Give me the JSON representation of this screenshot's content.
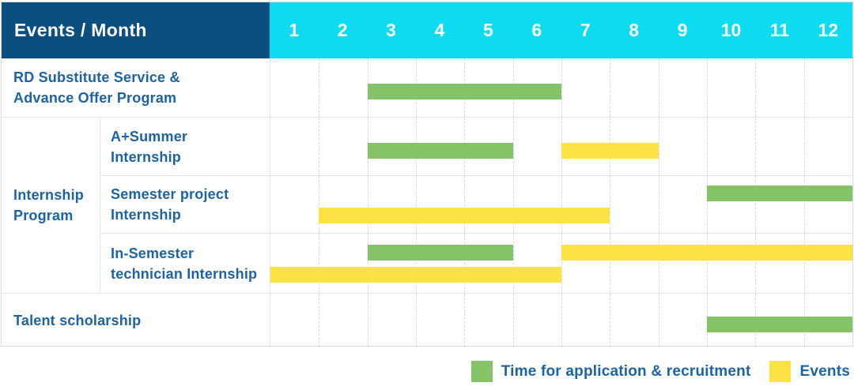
{
  "header": {
    "title": "Events / Month",
    "months": [
      "1",
      "2",
      "3",
      "4",
      "5",
      "6",
      "7",
      "8",
      "9",
      "10",
      "11",
      "12"
    ]
  },
  "group_header": {
    "label": "Internship Program",
    "lines": [
      "Internship",
      "Program"
    ]
  },
  "chart_data": {
    "type": "bar",
    "subtype": "gantt",
    "title": "Events / Month",
    "x_unit": "month",
    "x_ticks": [
      1,
      2,
      3,
      4,
      5,
      6,
      7,
      8,
      9,
      10,
      11,
      12
    ],
    "x_range": [
      1,
      12
    ],
    "grid": "dashed-vertical",
    "legend_position": "bottom-right",
    "series_legend": [
      {
        "name": "Time for application & recruitment",
        "color": "#85c369"
      },
      {
        "name": "Events",
        "color": "#fde244"
      }
    ],
    "rows": [
      {
        "label": "RD Substitute Service & Advance Offer Program",
        "label_lines": [
          "RD Substitute Service &",
          "Advance Offer Program"
        ],
        "group": null,
        "lines": [
          [
            {
              "series": "Time for application & recruitment",
              "color_key": "green",
              "start_month": 3,
              "end_month": 6
            }
          ]
        ]
      },
      {
        "label": "A+Summer Internship",
        "label_lines": [
          "A+Summer",
          "Internship"
        ],
        "group": "Internship Program",
        "lines": [
          [
            {
              "series": "Time for application & recruitment",
              "color_key": "green",
              "start_month": 3,
              "end_month": 5
            },
            {
              "series": "Events",
              "color_key": "yellow",
              "start_month": 7,
              "end_month": 8
            }
          ]
        ]
      },
      {
        "label": "Semester project Internship",
        "label_lines": [
          "Semester project",
          "Internship"
        ],
        "group": "Internship Program",
        "lines": [
          [
            {
              "series": "Time for application & recruitment",
              "color_key": "green",
              "start_month": 10,
              "end_month": 12
            }
          ],
          [
            {
              "series": "Events",
              "color_key": "yellow",
              "start_month": 2,
              "end_month": 7
            }
          ]
        ]
      },
      {
        "label": "In-Semester technician Internship",
        "label_lines": [
          "In-Semester",
          "technician Internship"
        ],
        "group": "Internship Program",
        "lines": [
          [
            {
              "series": "Time for application & recruitment",
              "color_key": "green",
              "start_month": 3,
              "end_month": 5
            },
            {
              "series": "Events",
              "color_key": "yellow",
              "start_month": 7,
              "end_month": 12
            }
          ],
          [
            {
              "series": "Events",
              "color_key": "yellow",
              "start_month": 1,
              "end_month": 6
            }
          ]
        ]
      },
      {
        "label": "Talent scholarship",
        "label_lines": [
          "Talent scholarship"
        ],
        "group": null,
        "lines": [
          [
            {
              "series": "Time for application & recruitment",
              "color_key": "green",
              "start_month": 10,
              "end_month": 12
            }
          ]
        ]
      }
    ]
  },
  "legend": {
    "items": [
      {
        "label": "Time for application & recruitment",
        "color_key": "green"
      },
      {
        "label": "Events",
        "color_key": "yellow"
      }
    ]
  },
  "colors": {
    "header_bg": "#0a4f7f",
    "month_header_bg": "#0ddcf0",
    "header_text": "#ffffff",
    "label_text": "#1b63a6",
    "green": "#85c369",
    "yellow": "#fde244",
    "grid_solid": "#e3e3e3",
    "grid_dashed": "#d8d8d8",
    "outer_border": "#d9d9d9"
  }
}
